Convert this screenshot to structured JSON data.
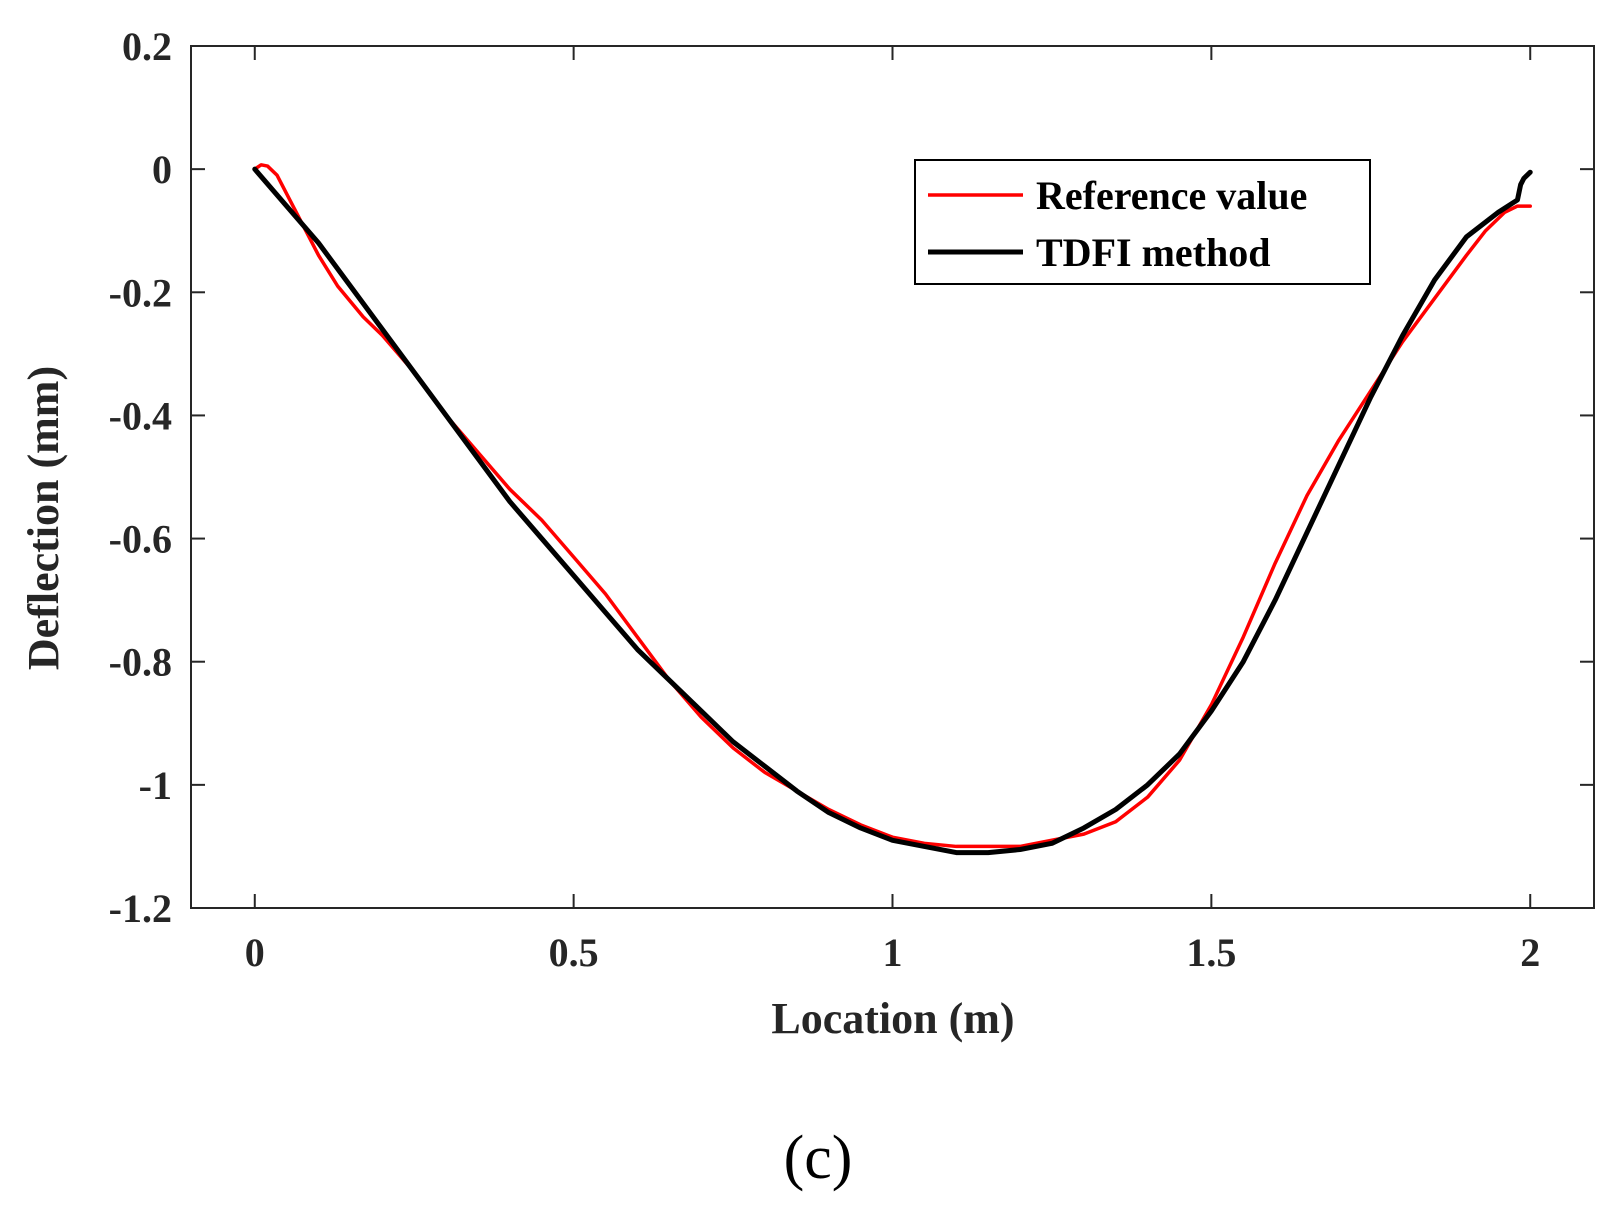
{
  "chart_data": {
    "type": "line",
    "title": "",
    "xlabel": "Location (m)",
    "ylabel": "Deflection (mm)",
    "xlim": [
      -0.1,
      2.1
    ],
    "ylim": [
      -1.2,
      0.2
    ],
    "xticks": [
      0,
      0.5,
      1,
      1.5,
      2
    ],
    "xtick_labels": [
      "0",
      "0.5",
      "1",
      "1.5",
      "2"
    ],
    "yticks": [
      0.2,
      0,
      -0.2,
      -0.4,
      -0.6,
      -0.8,
      -1,
      -1.2
    ],
    "ytick_labels": [
      "0.2",
      "0",
      "-0.2",
      "-0.4",
      "-0.6",
      "-0.8",
      "-1",
      "-1.2"
    ],
    "grid": false,
    "legend_position": "top-right",
    "caption": "(c)",
    "series": [
      {
        "name": "Reference value",
        "color": "#ff0000",
        "x": [
          0,
          0.01,
          0.02,
          0.035,
          0.05,
          0.08,
          0.1,
          0.13,
          0.17,
          0.2,
          0.25,
          0.3,
          0.35,
          0.4,
          0.45,
          0.5,
          0.55,
          0.6,
          0.65,
          0.7,
          0.75,
          0.8,
          0.85,
          0.9,
          0.95,
          1.0,
          1.05,
          1.1,
          1.15,
          1.2,
          1.25,
          1.3,
          1.35,
          1.4,
          1.45,
          1.5,
          1.55,
          1.6,
          1.65,
          1.7,
          1.75,
          1.8,
          1.85,
          1.9,
          1.93,
          1.96,
          1.98,
          2.0
        ],
        "y": [
          0,
          0.007,
          0.005,
          -0.01,
          -0.04,
          -0.1,
          -0.14,
          -0.19,
          -0.24,
          -0.27,
          -0.33,
          -0.4,
          -0.46,
          -0.52,
          -0.57,
          -0.63,
          -0.69,
          -0.76,
          -0.83,
          -0.89,
          -0.94,
          -0.98,
          -1.01,
          -1.04,
          -1.065,
          -1.085,
          -1.095,
          -1.1,
          -1.1,
          -1.1,
          -1.09,
          -1.08,
          -1.06,
          -1.02,
          -0.96,
          -0.87,
          -0.76,
          -0.64,
          -0.53,
          -0.44,
          -0.36,
          -0.28,
          -0.21,
          -0.14,
          -0.1,
          -0.07,
          -0.06,
          -0.06
        ]
      },
      {
        "name": "TDFI method",
        "color": "#000000",
        "x": [
          0,
          0.05,
          0.1,
          0.15,
          0.2,
          0.25,
          0.3,
          0.35,
          0.4,
          0.45,
          0.5,
          0.55,
          0.6,
          0.65,
          0.7,
          0.75,
          0.8,
          0.85,
          0.9,
          0.95,
          1.0,
          1.05,
          1.1,
          1.15,
          1.2,
          1.25,
          1.3,
          1.35,
          1.4,
          1.45,
          1.5,
          1.55,
          1.6,
          1.65,
          1.7,
          1.75,
          1.8,
          1.85,
          1.9,
          1.95,
          1.98,
          1.985,
          1.99,
          2.0
        ],
        "y": [
          0,
          -0.06,
          -0.12,
          -0.19,
          -0.26,
          -0.33,
          -0.4,
          -0.47,
          -0.54,
          -0.6,
          -0.66,
          -0.72,
          -0.78,
          -0.83,
          -0.88,
          -0.93,
          -0.97,
          -1.01,
          -1.045,
          -1.07,
          -1.09,
          -1.1,
          -1.11,
          -1.11,
          -1.105,
          -1.095,
          -1.07,
          -1.04,
          -1.0,
          -0.95,
          -0.88,
          -0.8,
          -0.7,
          -0.59,
          -0.48,
          -0.37,
          -0.27,
          -0.18,
          -0.11,
          -0.07,
          -0.05,
          -0.025,
          -0.015,
          -0.005
        ]
      }
    ]
  }
}
